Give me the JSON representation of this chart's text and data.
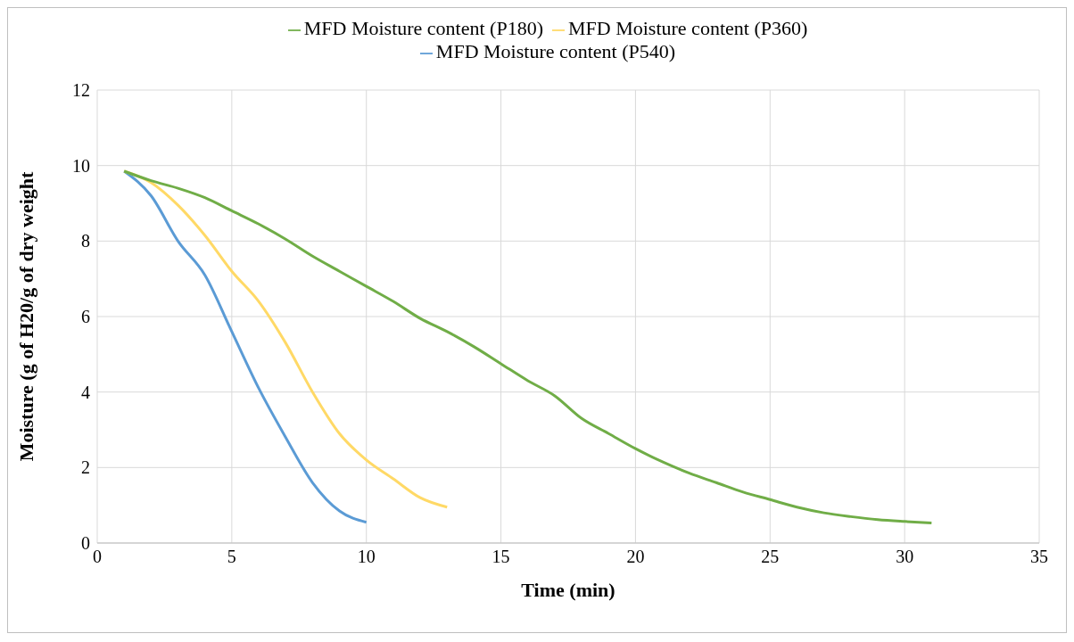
{
  "chart_data": {
    "type": "line",
    "xlabel": "Time (min)",
    "ylabel": "Moisture (g of H20/g of dry weight",
    "xlim": [
      0,
      35
    ],
    "xticks": [
      0,
      5,
      10,
      15,
      20,
      25,
      30,
      35
    ],
    "ylim": [
      0,
      12
    ],
    "yticks": [
      0,
      2,
      4,
      6,
      8,
      10,
      12
    ],
    "grid": true,
    "legend": "top",
    "marker": "none",
    "line_style": "solid",
    "series": [
      {
        "name": "MFD Moisture content (P540)",
        "color": "#5b9bd5",
        "x": [
          1,
          2,
          3,
          4,
          5,
          6,
          7,
          8,
          9,
          10
        ],
        "values": [
          9.85,
          9.2,
          8.0,
          7.1,
          5.6,
          4.1,
          2.8,
          1.6,
          0.85,
          0.55
        ]
      },
      {
        "name": "MFD Moisture content (P360)",
        "color": "#ffd966",
        "x": [
          1,
          2,
          3,
          4,
          5,
          6,
          7,
          8,
          9,
          10,
          11,
          12,
          13
        ],
        "values": [
          9.85,
          9.55,
          8.95,
          8.15,
          7.2,
          6.4,
          5.3,
          4.0,
          2.9,
          2.2,
          1.7,
          1.2,
          0.95
        ]
      },
      {
        "name": "MFD Moisture content (P180)",
        "color": "#70ad47",
        "x": [
          1,
          2,
          3,
          4,
          5,
          6,
          7,
          8,
          9,
          10,
          11,
          12,
          13,
          14,
          15,
          16,
          17,
          18,
          19,
          20,
          21,
          22,
          23,
          24,
          25,
          26,
          27,
          28,
          29,
          30,
          31
        ],
        "values": [
          9.85,
          9.6,
          9.4,
          9.15,
          8.8,
          8.45,
          8.05,
          7.6,
          7.2,
          6.8,
          6.4,
          5.95,
          5.6,
          5.2,
          4.75,
          4.3,
          3.9,
          3.3,
          2.9,
          2.5,
          2.15,
          1.85,
          1.6,
          1.35,
          1.15,
          0.95,
          0.8,
          0.7,
          0.62,
          0.57,
          0.53
        ]
      }
    ]
  }
}
